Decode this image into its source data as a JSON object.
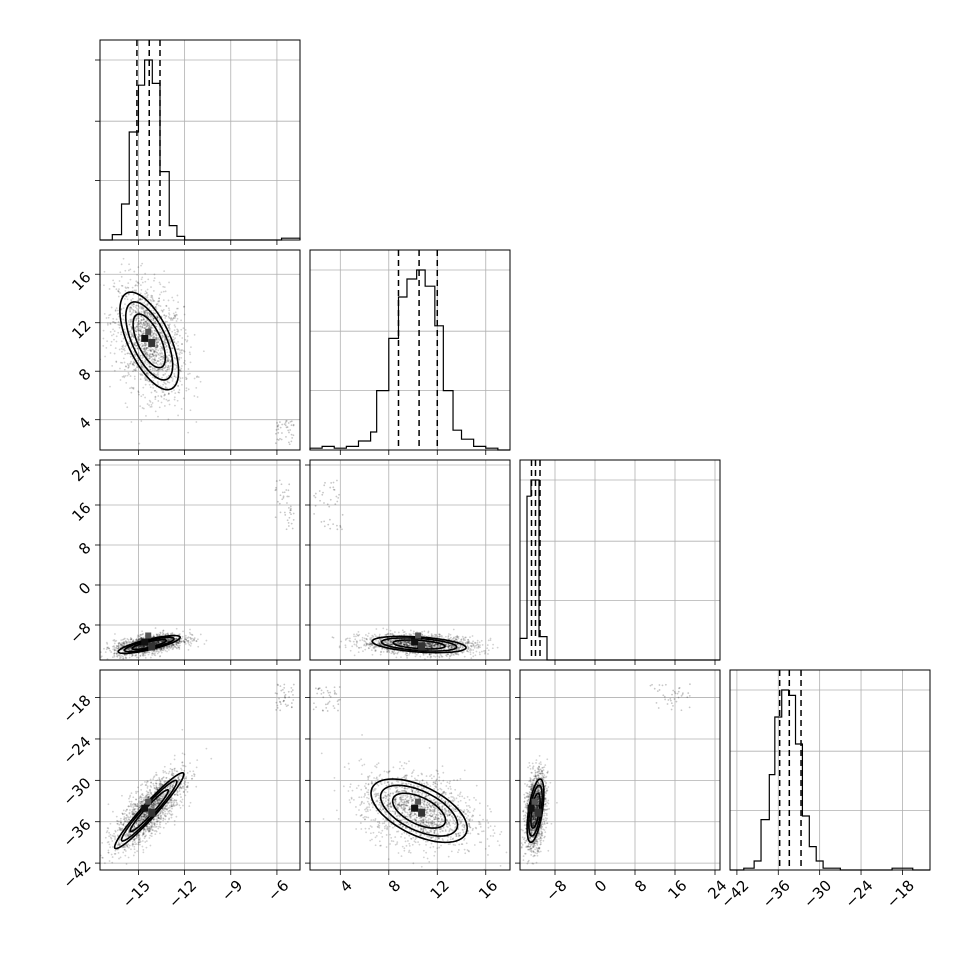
{
  "chart_data": {
    "type": "scatter",
    "title": "",
    "parameters": [
      {
        "range": [
          -17.5,
          -4.5
        ],
        "ticks": [
          -15,
          -12,
          -9,
          -6
        ],
        "tick_labels": [
          "−15",
          "−12",
          "−9",
          "−6"
        ]
      },
      {
        "range": [
          1.5,
          18
        ],
        "ticks": [
          4,
          8,
          12,
          16
        ],
        "tick_labels": [
          "4",
          "8",
          "12",
          "16"
        ]
      },
      {
        "range": [
          -15,
          25
        ],
        "ticks": [
          -8,
          0,
          8,
          16,
          24
        ],
        "tick_labels": [
          "−8",
          "0",
          "8",
          "16",
          "24"
        ]
      },
      {
        "range": [
          -43,
          -14
        ],
        "ticks": [
          -42,
          -36,
          -30,
          -24,
          -18
        ],
        "tick_labels": [
          "−42",
          "−36",
          "−30",
          "−24",
          "−18"
        ]
      }
    ],
    "histograms": [
      {
        "bins": [
          [
            -17.5,
            -16.7,
            0.0
          ],
          [
            -16.7,
            -16.1,
            0.03
          ],
          [
            -16.1,
            -15.6,
            0.2
          ],
          [
            -15.6,
            -15.0,
            0.6
          ],
          [
            -15.0,
            -14.6,
            0.86
          ],
          [
            -14.6,
            -14.1,
            1.0
          ],
          [
            -14.1,
            -13.6,
            0.87
          ],
          [
            -13.6,
            -13.0,
            0.38
          ],
          [
            -13.0,
            -12.5,
            0.08
          ],
          [
            -12.5,
            -12.0,
            0.02
          ],
          [
            -12.0,
            -5.7,
            0.0
          ],
          [
            -5.7,
            -4.5,
            0.01
          ]
        ],
        "quantiles": [
          -15.1,
          -14.3,
          -13.6
        ]
      },
      {
        "bins": [
          [
            1.5,
            2.5,
            0.01
          ],
          [
            2.5,
            3.5,
            0.02
          ],
          [
            3.5,
            4.5,
            0.01
          ],
          [
            4.5,
            5.5,
            0.02
          ],
          [
            5.5,
            6.5,
            0.05
          ],
          [
            6.5,
            7.0,
            0.1
          ],
          [
            7.0,
            8.0,
            0.33
          ],
          [
            8.0,
            8.8,
            0.62
          ],
          [
            8.8,
            9.5,
            0.85
          ],
          [
            9.5,
            10.3,
            0.95
          ],
          [
            10.3,
            11.0,
            1.0
          ],
          [
            11.0,
            11.8,
            0.91
          ],
          [
            11.8,
            12.5,
            0.69
          ],
          [
            12.5,
            13.3,
            0.33
          ],
          [
            13.3,
            14.0,
            0.11
          ],
          [
            14.0,
            15.0,
            0.06
          ],
          [
            15.0,
            16.0,
            0.02
          ],
          [
            16.0,
            17.0,
            0.01
          ],
          [
            17.0,
            18.0,
            0.0
          ]
        ],
        "quantiles": [
          8.8,
          10.5,
          12.0
        ]
      },
      {
        "bins": [
          [
            -15.0,
            -13.6,
            0.12
          ],
          [
            -13.6,
            -12.8,
            0.91
          ],
          [
            -12.8,
            -11.2,
            1.0
          ],
          [
            -11.2,
            -9.6,
            0.13
          ],
          [
            -9.6,
            25.0,
            0.0
          ]
        ],
        "quantiles": [
          -12.7,
          -11.9,
          -11.0
        ]
      },
      {
        "bins": [
          [
            -43.0,
            -41.0,
            0.0
          ],
          [
            -41.0,
            -39.5,
            0.01
          ],
          [
            -39.5,
            -38.5,
            0.05
          ],
          [
            -38.5,
            -37.3,
            0.28
          ],
          [
            -37.3,
            -36.5,
            0.53
          ],
          [
            -36.5,
            -35.5,
            0.85
          ],
          [
            -35.5,
            -34.5,
            1.0
          ],
          [
            -34.5,
            -33.5,
            0.97
          ],
          [
            -33.5,
            -32.5,
            0.7
          ],
          [
            -32.5,
            -31.5,
            0.3
          ],
          [
            -31.5,
            -30.5,
            0.13
          ],
          [
            -30.5,
            -29.5,
            0.05
          ],
          [
            -29.5,
            -27.0,
            0.01
          ],
          [
            -27.0,
            -19.5,
            0.0
          ],
          [
            -19.5,
            -16.5,
            0.01
          ],
          [
            -16.5,
            -14.0,
            0.0
          ]
        ],
        "quantiles": [
          -35.8,
          -34.4,
          -32.7
        ]
      }
    ],
    "pairs": [
      {
        "row": 1,
        "col": 0,
        "center": [
          -14.3,
          10.5
        ],
        "sigma": [
          0.9,
          1.9
        ],
        "rho": -0.35,
        "outlier_center": [
          -5.5,
          3.0
        ],
        "outlier_spread": [
          0.6,
          1.2
        ]
      },
      {
        "row": 2,
        "col": 0,
        "center": [
          -14.3,
          -11.9
        ],
        "sigma": [
          0.9,
          0.8
        ],
        "rho": 0.5,
        "outlier_center": [
          -5.5,
          16.0
        ],
        "outlier_spread": [
          0.6,
          5.0
        ]
      },
      {
        "row": 2,
        "col": 1,
        "center": [
          10.5,
          -11.9
        ],
        "sigma": [
          1.9,
          0.8
        ],
        "rho": -0.2,
        "outlier_center": [
          3.0,
          16.0
        ],
        "outlier_spread": [
          1.2,
          5.0
        ]
      },
      {
        "row": 3,
        "col": 0,
        "center": [
          -14.3,
          -34.4
        ],
        "sigma": [
          0.9,
          2.2
        ],
        "rho": 0.75,
        "outlier_center": [
          -5.5,
          -18.0
        ],
        "outlier_spread": [
          0.6,
          2.0
        ]
      },
      {
        "row": 3,
        "col": 1,
        "center": [
          10.5,
          -34.4
        ],
        "sigma": [
          1.9,
          2.2
        ],
        "rho": -0.3,
        "outlier_center": [
          3.0,
          -18.0
        ],
        "outlier_spread": [
          1.2,
          2.0
        ]
      },
      {
        "row": 3,
        "col": 2,
        "center": [
          -11.9,
          -34.4
        ],
        "sigma": [
          0.8,
          2.2
        ],
        "rho": 0.3,
        "outlier_center": [
          15.0,
          -18.0
        ],
        "outlier_spread": [
          4.0,
          2.0
        ]
      }
    ],
    "grid": true,
    "legend": "none"
  }
}
